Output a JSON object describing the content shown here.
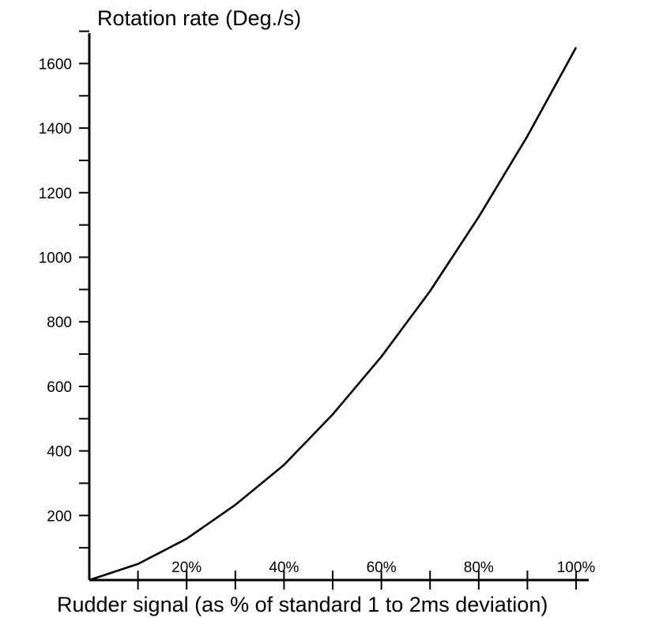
{
  "chart_data": {
    "type": "line",
    "title": "Rotation rate (Deg./s)",
    "xlabel": "Rudder signal (as % of standard 1 to 2ms deviation)",
    "ylabel": "Rotation rate (Deg./s)",
    "xlim": [
      0,
      100
    ],
    "ylim": [
      0,
      1700
    ],
    "yticks": [
      200,
      400,
      600,
      800,
      1000,
      1200,
      1400,
      1600
    ],
    "ytick_labels": [
      "200",
      "400",
      "600",
      "800",
      "1000",
      "1200",
      "1400",
      "1600"
    ],
    "yminor_step": 100,
    "xticks": [
      20,
      40,
      60,
      80,
      100
    ],
    "xtick_labels": [
      "20%",
      "40%",
      "60%",
      "80%",
      "100%"
    ],
    "xminor_step": 10,
    "grid": false,
    "series": [
      {
        "color": "#000000",
        "x": [
          0,
          10,
          20,
          30,
          40,
          50,
          60,
          70,
          80,
          90,
          100
        ],
        "y": [
          0,
          50,
          128,
          233,
          357,
          513,
          692,
          895,
          1125,
          1375,
          1650
        ]
      }
    ]
  }
}
